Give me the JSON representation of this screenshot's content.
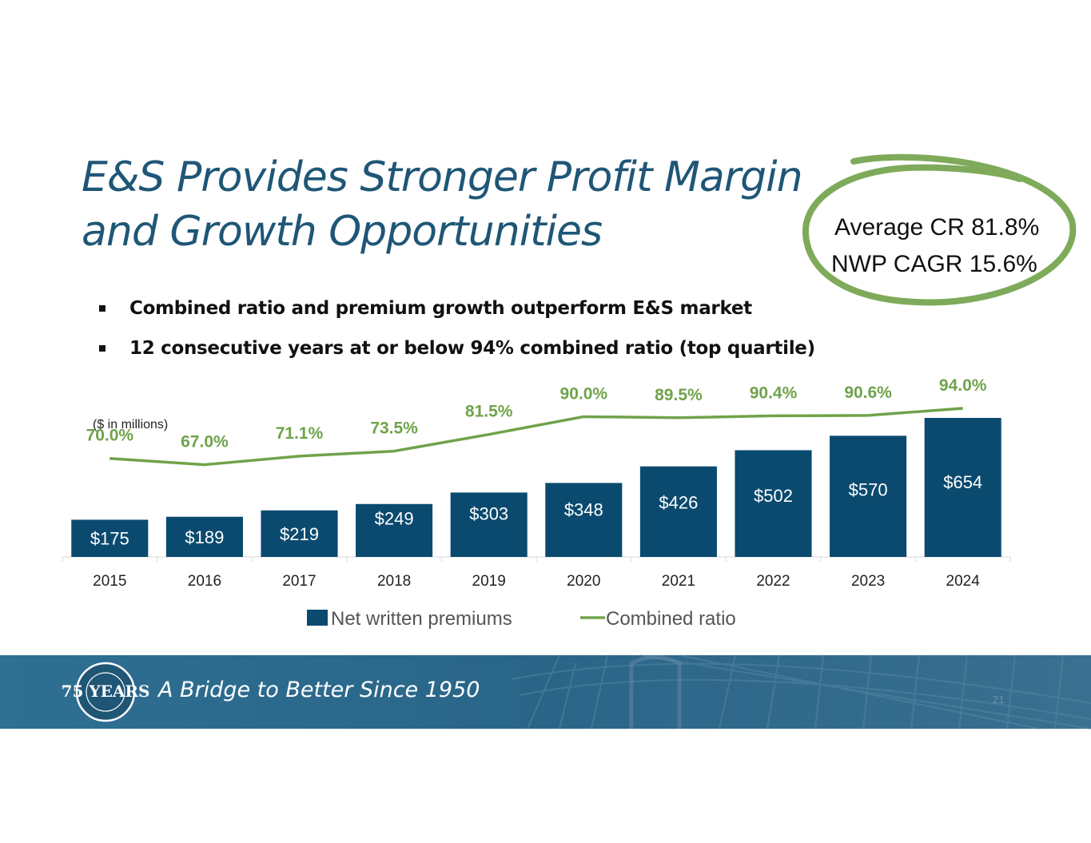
{
  "slide": {
    "title_lines": [
      "E&S Provides Stronger Profit Margin",
      "and Growth Opportunities"
    ],
    "bullets": [
      "Combined ratio and premium growth outperform E&S market",
      "12 consecutive years at or below 94% combined ratio (top quartile)"
    ],
    "callout": {
      "line1": "Average CR 81.8%",
      "line2": "NWP CAGR 15.6%"
    },
    "footer": {
      "tagline": "A Bridge to Better Since 1950",
      "page_number": "21",
      "logo_text": "75 YEARS"
    }
  },
  "colors": {
    "title": "#1f5676",
    "bar": "#0b4a6f",
    "line": "#6fa34a",
    "callout_ring": "#7eaa5a",
    "footer_bg": "#2e6f92"
  },
  "chart_data": {
    "type": "bar",
    "title": "",
    "note": "($ in millions)",
    "categories": [
      "2015",
      "2016",
      "2017",
      "2018",
      "2019",
      "2020",
      "2021",
      "2022",
      "2023",
      "2024"
    ],
    "series": [
      {
        "name": "Net written premiums",
        "kind": "bar",
        "values": [
          175,
          189,
          219,
          249,
          303,
          348,
          426,
          502,
          570,
          654
        ],
        "labels": [
          "$175",
          "$189",
          "$219",
          "$249",
          "$303",
          "$348",
          "$426",
          "$502",
          "$570",
          "$654"
        ]
      },
      {
        "name": "Combined ratio",
        "kind": "line",
        "values": [
          70.0,
          67.0,
          71.1,
          73.5,
          81.5,
          90.0,
          89.5,
          90.4,
          90.6,
          94.0
        ],
        "labels": [
          "70.0%",
          "67.0%",
          "71.1%",
          "73.5%",
          "81.5%",
          "90.0%",
          "89.5%",
          "90.4%",
          "90.6%",
          "94.0%"
        ]
      }
    ],
    "y_bar_range": [
      0,
      654
    ],
    "y_line_range": [
      50,
      94
    ],
    "legend_position": "bottom",
    "grid": false
  }
}
